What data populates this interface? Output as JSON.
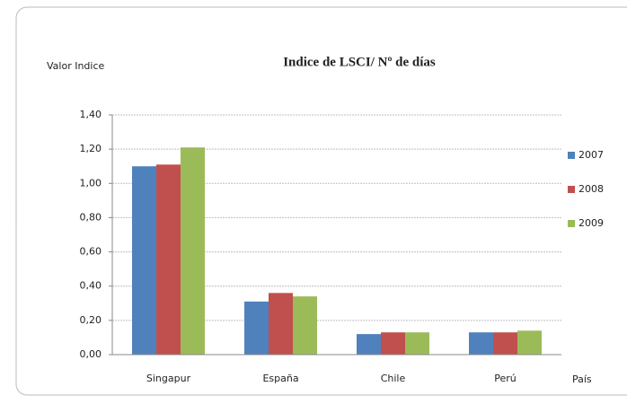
{
  "chart_data": {
    "type": "bar",
    "title": "Indice de LSCI/ Nº de días",
    "y_label": "Valor Indice",
    "x_label": "País",
    "categories": [
      "Singapur",
      "España",
      "Chile",
      "Perú"
    ],
    "series": [
      {
        "name": "2007",
        "color": "#4f81bd",
        "values": [
          1.1,
          0.31,
          0.12,
          0.13
        ]
      },
      {
        "name": "2008",
        "color": "#c0504d",
        "values": [
          1.11,
          0.36,
          0.13,
          0.13
        ]
      },
      {
        "name": "2009",
        "color": "#9bbb59",
        "values": [
          1.21,
          0.34,
          0.13,
          0.14
        ]
      }
    ],
    "ylim": [
      0,
      1.4
    ],
    "yticks": [
      {
        "value": 0,
        "label": "0,00"
      },
      {
        "value": 0.2,
        "label": "0,20"
      },
      {
        "value": 0.4,
        "label": "0,40"
      },
      {
        "value": 0.6,
        "label": "0,60"
      },
      {
        "value": 0.8,
        "label": "0,80"
      },
      {
        "value": 1.0,
        "label": "1,00"
      },
      {
        "value": 1.2,
        "label": "1,20"
      },
      {
        "value": 1.4,
        "label": "1,40"
      }
    ],
    "grid": true,
    "legend": "right"
  }
}
